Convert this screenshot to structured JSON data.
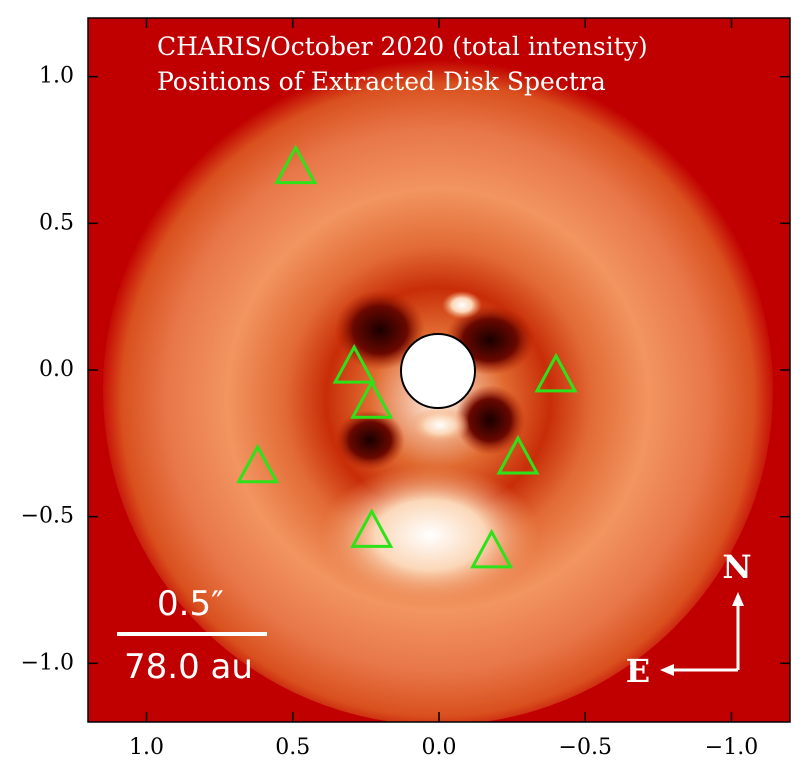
{
  "chart_data": {
    "type": "scatter",
    "title": "CHARIS/October 2020 (total intensity)",
    "subtitle": "Positions of Extracted Disk Spectra",
    "x": [
      0.49,
      0.29,
      0.23,
      0.62,
      -0.27,
      -0.4,
      0.23,
      -0.18
    ],
    "y": [
      0.69,
      0.01,
      -0.11,
      -0.33,
      -0.3,
      -0.02,
      -0.55,
      -0.62
    ],
    "marker": "triangle",
    "color": "#2ee21a",
    "xlim": [
      1.2,
      -1.2
    ],
    "ylim": [
      -1.2,
      1.2
    ],
    "xticks": [
      {
        "value": 1.0,
        "label": "1.0"
      },
      0.5,
      {
        "value": 0.0,
        "label": "0.0"
      },
      {
        "value": -0.5,
        "label": "−0.5"
      },
      {
        "value": -1.0,
        "label": "−1.0"
      }
    ],
    "yticks": [
      {
        "value": 1.0,
        "label": "1.0"
      },
      0.5,
      {
        "value": 0.0,
        "label": "0.0"
      },
      {
        "value": -0.5,
        "label": "−0.5"
      },
      {
        "value": -1.0,
        "label": "−1.0"
      }
    ],
    "annotations": {
      "scale_angle": "0.5″",
      "scale_distance": "78.0 au",
      "north": "N",
      "east": "E"
    }
  }
}
